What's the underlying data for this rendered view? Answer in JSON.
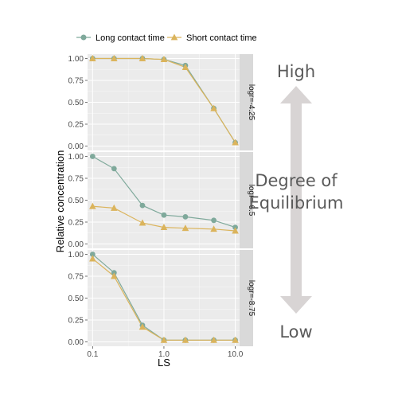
{
  "chart_data": {
    "type": "line",
    "x_scale": "log",
    "xlabel": "LS",
    "ylabel": "Relative concentration",
    "x_ticks": [
      0.1,
      1.0,
      10.0
    ],
    "x_tick_labels": [
      "0.1",
      "1.0",
      "10.0"
    ],
    "y_ticks": [
      0,
      0.25,
      0.5,
      0.75,
      1.0
    ],
    "y_tick_labels": [
      "0.00",
      "0.25",
      "0.50",
      "0.75",
      "1.00"
    ],
    "xlim": [
      0.085,
      11.5
    ],
    "ylim": [
      -0.05,
      1.05
    ],
    "grid": true,
    "legend_position": "top",
    "series_meta": [
      {
        "name": "Long contact time",
        "color": "#7fa99b",
        "marker": "circle"
      },
      {
        "name": "Short contact time",
        "color": "#dbb45c",
        "marker": "triangle"
      }
    ],
    "x": [
      0.1,
      0.2,
      0.5,
      1.0,
      2.0,
      5.0,
      10.0
    ],
    "panels": [
      {
        "label": "logr=-4.25",
        "series": [
          {
            "name": "Long contact time",
            "values": [
              1.0,
              1.0,
              1.0,
              0.99,
              0.92,
              0.43,
              0.04
            ]
          },
          {
            "name": "Short contact time",
            "values": [
              1.0,
              1.0,
              1.0,
              0.99,
              0.9,
              0.43,
              0.04
            ]
          }
        ]
      },
      {
        "label": "logr=-6.5",
        "series": [
          {
            "name": "Long contact time",
            "values": [
              1.0,
              0.86,
              0.44,
              0.33,
              0.31,
              0.27,
              0.19
            ]
          },
          {
            "name": "Short contact time",
            "values": [
              0.43,
              0.41,
              0.24,
              0.19,
              0.18,
              0.17,
              0.15
            ]
          }
        ]
      },
      {
        "label": "logr=-8.75",
        "series": [
          {
            "name": "Long contact time",
            "values": [
              1.0,
              0.79,
              0.19,
              0.02,
              0.02,
              0.02,
              0.02
            ]
          },
          {
            "name": "Short contact time",
            "values": [
              0.95,
              0.75,
              0.17,
              0.02,
              0.02,
              0.02,
              0.02
            ]
          }
        ]
      }
    ]
  },
  "annotation": {
    "high": "High",
    "degree_line1": "Degree of",
    "degree_line2": "Equilibrium",
    "low": "Low",
    "arrow_color": "#d8d4d4"
  },
  "colors": {
    "panel_bg": "#ebebeb",
    "strip_bg": "#d9d9d9",
    "grid_major": "#ffffff"
  }
}
